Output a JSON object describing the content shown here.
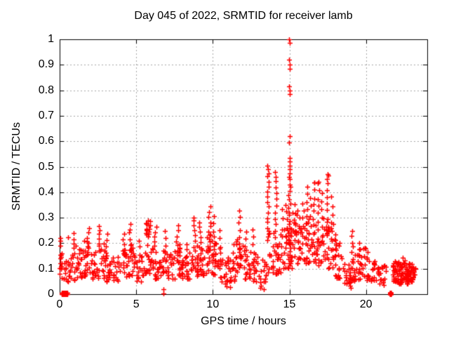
{
  "chart_data": {
    "type": "scatter",
    "title": "Day 045 of 2022, SRMTID for receiver lamb",
    "xlabel": "GPS time / hours",
    "ylabel": "SRMTID / TECUs",
    "xlim": [
      0,
      24
    ],
    "ylim": [
      0,
      1
    ],
    "xticks": [
      0,
      5,
      10,
      15,
      20
    ],
    "yticks": [
      0,
      0.1,
      0.2,
      0.3,
      0.4,
      0.5,
      0.6,
      0.7,
      0.8,
      0.9,
      1
    ],
    "grid": true,
    "legend_position": "none",
    "marker": "plus",
    "marker_color": "#ff0000",
    "axis_color": "#000000",
    "grid_color": "#a6a6a6",
    "background_color": "#ffffff",
    "peak_points_xy": [
      [
        14.98,
        1.0
      ],
      [
        15.0,
        0.985
      ],
      [
        14.99,
        0.92
      ],
      [
        15.01,
        0.9
      ],
      [
        15.0,
        0.885
      ],
      [
        14.99,
        0.815
      ],
      [
        15.01,
        0.8
      ],
      [
        15.0,
        0.785
      ],
      [
        15.0,
        0.62
      ],
      [
        14.98,
        0.595
      ],
      [
        15.04,
        0.535
      ],
      [
        15.02,
        0.52
      ],
      [
        15.0,
        0.505
      ],
      [
        15.04,
        0.49
      ],
      [
        15.01,
        0.475
      ],
      [
        13.58,
        0.505
      ],
      [
        13.61,
        0.49
      ],
      [
        13.64,
        0.475
      ],
      [
        14.08,
        0.48
      ],
      [
        14.12,
        0.46
      ],
      [
        17.5,
        0.47
      ],
      [
        17.47,
        0.452
      ],
      [
        16.9,
        0.44
      ],
      [
        16.62,
        0.437
      ]
    ],
    "low_outliers_xy": [
      [
        6.78,
        0.003
      ],
      [
        6.8,
        0.018
      ],
      [
        10.9,
        0.03
      ],
      [
        11.15,
        0.028
      ],
      [
        13.1,
        0.025
      ],
      [
        13.35,
        0.02
      ],
      [
        18.9,
        0.045
      ],
      [
        18.95,
        0.033
      ],
      [
        19.0,
        0.026
      ],
      [
        20.9,
        0.04
      ],
      [
        21.15,
        0.035
      ]
    ],
    "start_points_xy": [
      [
        0.02,
        0.08
      ],
      [
        0.03,
        0.12
      ],
      [
        0.05,
        0.155
      ],
      [
        0.04,
        0.19
      ],
      [
        0.06,
        0.21
      ],
      [
        0.05,
        0.22
      ],
      [
        0.07,
        0.1
      ],
      [
        0.03,
        0.14
      ],
      [
        0.56,
        0.224
      ]
    ],
    "zero_value_blocks_trange": [
      [
        0.15,
        0.5
      ],
      [
        21.56,
        21.64
      ]
    ],
    "spike_columns_t_ymin_ymax_n_spread": [
      [
        0.95,
        0.16,
        0.24,
        5,
        0.1
      ],
      [
        1.85,
        0.15,
        0.26,
        7,
        0.15
      ],
      [
        2.6,
        0.17,
        0.27,
        7,
        0.15
      ],
      [
        3.05,
        0.14,
        0.24,
        5,
        0.12
      ],
      [
        4.2,
        0.15,
        0.235,
        5,
        0.12
      ],
      [
        4.6,
        0.16,
        0.275,
        7,
        0.15
      ],
      [
        5.2,
        0.13,
        0.21,
        4,
        0.1
      ],
      [
        5.78,
        0.23,
        0.29,
        16,
        0.3
      ],
      [
        6.25,
        0.17,
        0.26,
        6,
        0.12
      ],
      [
        6.9,
        0.13,
        0.25,
        5,
        0.1
      ],
      [
        7.7,
        0.15,
        0.27,
        7,
        0.15
      ],
      [
        8.3,
        0.12,
        0.2,
        4,
        0.1
      ],
      [
        8.8,
        0.17,
        0.305,
        8,
        0.15
      ],
      [
        9.15,
        0.16,
        0.285,
        7,
        0.15
      ],
      [
        9.75,
        0.17,
        0.345,
        10,
        0.2
      ],
      [
        10.05,
        0.15,
        0.3,
        7,
        0.15
      ],
      [
        10.45,
        0.13,
        0.25,
        5,
        0.12
      ],
      [
        11.3,
        0.1,
        0.2,
        4,
        0.1
      ],
      [
        11.75,
        0.15,
        0.33,
        8,
        0.15
      ],
      [
        12.15,
        0.13,
        0.25,
        5,
        0.12
      ],
      [
        12.65,
        0.14,
        0.25,
        5,
        0.12
      ],
      [
        13.6,
        0.24,
        0.46,
        12,
        0.12
      ],
      [
        14.1,
        0.2,
        0.445,
        11,
        0.12
      ],
      [
        14.5,
        0.15,
        0.33,
        6,
        0.12
      ],
      [
        14.78,
        0.2,
        0.35,
        6,
        0.12
      ],
      [
        15.0,
        0.1,
        0.465,
        24,
        0.15
      ],
      [
        15.3,
        0.15,
        0.35,
        7,
        0.15
      ],
      [
        15.6,
        0.18,
        0.33,
        6,
        0.15
      ],
      [
        15.9,
        0.2,
        0.36,
        6,
        0.15
      ],
      [
        16.1,
        0.22,
        0.42,
        8,
        0.15
      ],
      [
        16.35,
        0.2,
        0.38,
        6,
        0.15
      ],
      [
        16.6,
        0.24,
        0.435,
        8,
        0.15
      ],
      [
        16.9,
        0.22,
        0.44,
        8,
        0.15
      ],
      [
        17.15,
        0.2,
        0.4,
        7,
        0.15
      ],
      [
        17.5,
        0.24,
        0.465,
        9,
        0.15
      ],
      [
        17.75,
        0.18,
        0.38,
        7,
        0.15
      ],
      [
        18.0,
        0.12,
        0.235,
        5,
        0.12
      ],
      [
        19.1,
        0.1,
        0.245,
        8,
        0.15
      ],
      [
        19.6,
        0.1,
        0.2,
        5,
        0.12
      ]
    ],
    "band_segments_t_dt_lo_hi_n": [
      [
        0.0,
        0.5,
        0.06,
        0.18,
        16
      ],
      [
        0.5,
        0.5,
        0.05,
        0.17,
        18
      ],
      [
        1.0,
        0.5,
        0.06,
        0.19,
        20
      ],
      [
        1.5,
        0.5,
        0.07,
        0.21,
        20
      ],
      [
        2.0,
        0.5,
        0.06,
        0.18,
        18
      ],
      [
        2.5,
        0.5,
        0.06,
        0.2,
        18
      ],
      [
        3.0,
        0.5,
        0.05,
        0.16,
        18
      ],
      [
        3.5,
        0.5,
        0.05,
        0.15,
        16
      ],
      [
        4.0,
        0.5,
        0.06,
        0.18,
        18
      ],
      [
        4.5,
        0.5,
        0.07,
        0.2,
        18
      ],
      [
        5.0,
        0.5,
        0.05,
        0.16,
        16
      ],
      [
        5.5,
        0.5,
        0.08,
        0.2,
        18
      ],
      [
        6.0,
        0.5,
        0.06,
        0.18,
        18
      ],
      [
        6.5,
        0.5,
        0.04,
        0.18,
        18
      ],
      [
        7.0,
        0.5,
        0.06,
        0.17,
        18
      ],
      [
        7.5,
        0.5,
        0.07,
        0.2,
        20
      ],
      [
        8.0,
        0.5,
        0.06,
        0.17,
        18
      ],
      [
        8.5,
        0.5,
        0.07,
        0.21,
        18
      ],
      [
        9.0,
        0.5,
        0.07,
        0.2,
        18
      ],
      [
        9.5,
        0.5,
        0.08,
        0.24,
        20
      ],
      [
        10.0,
        0.5,
        0.07,
        0.2,
        18
      ],
      [
        10.5,
        0.5,
        0.04,
        0.14,
        18
      ],
      [
        11.0,
        0.5,
        0.05,
        0.15,
        18
      ],
      [
        11.5,
        0.5,
        0.07,
        0.22,
        18
      ],
      [
        12.0,
        0.5,
        0.06,
        0.18,
        18
      ],
      [
        12.5,
        0.5,
        0.05,
        0.16,
        16
      ],
      [
        13.0,
        0.5,
        0.03,
        0.15,
        14
      ],
      [
        13.5,
        0.5,
        0.08,
        0.25,
        18
      ],
      [
        14.0,
        0.5,
        0.08,
        0.24,
        18
      ],
      [
        14.5,
        0.5,
        0.1,
        0.26,
        18
      ],
      [
        15.0,
        0.5,
        0.1,
        0.32,
        20
      ],
      [
        15.5,
        0.5,
        0.12,
        0.28,
        18
      ],
      [
        16.0,
        0.5,
        0.12,
        0.3,
        18
      ],
      [
        16.5,
        0.5,
        0.11,
        0.32,
        18
      ],
      [
        17.0,
        0.5,
        0.12,
        0.3,
        18
      ],
      [
        17.5,
        0.5,
        0.1,
        0.32,
        18
      ],
      [
        18.0,
        0.5,
        0.06,
        0.2,
        16
      ],
      [
        18.5,
        0.5,
        0.04,
        0.13,
        18
      ],
      [
        19.0,
        0.5,
        0.05,
        0.16,
        18
      ],
      [
        19.5,
        0.5,
        0.06,
        0.19,
        18
      ],
      [
        20.0,
        0.5,
        0.05,
        0.17,
        18
      ],
      [
        20.5,
        0.5,
        0.05,
        0.13,
        16
      ],
      [
        21.0,
        0.3,
        0.04,
        0.12,
        10
      ],
      [
        21.75,
        0.3,
        0.05,
        0.13,
        26
      ],
      [
        22.05,
        0.35,
        0.04,
        0.145,
        32
      ],
      [
        22.4,
        0.35,
        0.04,
        0.14,
        30
      ],
      [
        22.75,
        0.3,
        0.05,
        0.125,
        26
      ],
      [
        23.05,
        0.2,
        0.06,
        0.11,
        10
      ]
    ]
  }
}
